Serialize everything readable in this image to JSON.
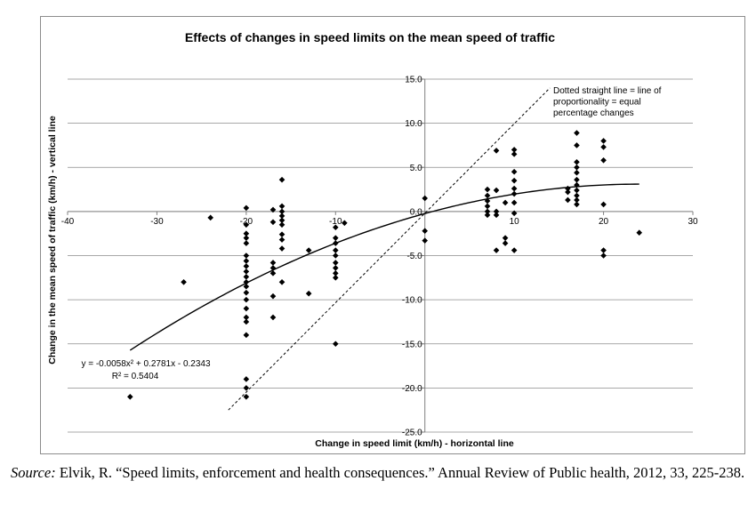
{
  "chart_data": {
    "type": "scatter",
    "title": "Effects of changes in speed limits on the mean speed of traffic",
    "xlabel": "Change in speed limit (km/h) - horizontal line",
    "ylabel": "Change in the mean speed of traffic (km/h) - vertical line",
    "xlim": [
      -40,
      30
    ],
    "ylim": [
      -25,
      15
    ],
    "x_ticks": [
      "-40",
      "-30",
      "-20",
      "-10",
      "0",
      "10",
      "20",
      "30"
    ],
    "y_ticks": [
      "15.0",
      "10.0",
      "5.0",
      "0.0",
      "-5.0",
      "-10.0",
      "-15.0",
      "-20.0",
      "-25.0"
    ],
    "grid": "horizontal",
    "points": [
      [
        -33,
        -21
      ],
      [
        -27,
        -8
      ],
      [
        -24,
        -0.7
      ],
      [
        -20,
        0.4
      ],
      [
        -20,
        -1.5
      ],
      [
        -20,
        -2.5
      ],
      [
        -20,
        -3.0
      ],
      [
        -20,
        -3.6
      ],
      [
        -20,
        -5.0
      ],
      [
        -20,
        -5.6
      ],
      [
        -20,
        -6.2
      ],
      [
        -20,
        -6.8
      ],
      [
        -20,
        -7.4
      ],
      [
        -20,
        -8.0
      ],
      [
        -20,
        -8.5
      ],
      [
        -20,
        -9.2
      ],
      [
        -20,
        -10.0
      ],
      [
        -20,
        -11.0
      ],
      [
        -20,
        -12.0
      ],
      [
        -20,
        -12.5
      ],
      [
        -20,
        -14.0
      ],
      [
        -20,
        -19.0
      ],
      [
        -20,
        -20.0
      ],
      [
        -20,
        -21.0
      ],
      [
        -17,
        0.2
      ],
      [
        -17,
        -1.2
      ],
      [
        -17,
        -5.8
      ],
      [
        -17,
        -6.4
      ],
      [
        -17,
        -7.0
      ],
      [
        -17,
        -9.6
      ],
      [
        -17,
        -12.0
      ],
      [
        -16,
        3.6
      ],
      [
        -16,
        0.6
      ],
      [
        -16,
        0.0
      ],
      [
        -16,
        -0.5
      ],
      [
        -16,
        -1.0
      ],
      [
        -16,
        -1.5
      ],
      [
        -16,
        -2.6
      ],
      [
        -16,
        -3.2
      ],
      [
        -16,
        -4.2
      ],
      [
        -16,
        -8.0
      ],
      [
        -13,
        -4.4
      ],
      [
        -13,
        -9.3
      ],
      [
        -10,
        -1.8
      ],
      [
        -10,
        -3.0
      ],
      [
        -10,
        -3.6
      ],
      [
        -10,
        -4.4
      ],
      [
        -10,
        -5.0
      ],
      [
        -10,
        -5.8
      ],
      [
        -10,
        -6.4
      ],
      [
        -10,
        -7.0
      ],
      [
        -10,
        -7.5
      ],
      [
        -10,
        -15.0
      ],
      [
        -9,
        -1.3
      ],
      [
        0,
        1.5
      ],
      [
        0,
        -2.2
      ],
      [
        0,
        -3.3
      ],
      [
        7,
        2.5
      ],
      [
        7,
        1.8
      ],
      [
        7,
        1.2
      ],
      [
        7,
        0.6
      ],
      [
        7,
        0.0
      ],
      [
        7,
        -0.4
      ],
      [
        8,
        6.9
      ],
      [
        8,
        2.4
      ],
      [
        8,
        0.0
      ],
      [
        8,
        -0.4
      ],
      [
        8,
        -4.4
      ],
      [
        9,
        1.0
      ],
      [
        9,
        -3.0
      ],
      [
        9,
        -3.6
      ],
      [
        10,
        7.0
      ],
      [
        10,
        6.5
      ],
      [
        10,
        4.5
      ],
      [
        10,
        3.5
      ],
      [
        10,
        2.6
      ],
      [
        10,
        2.0
      ],
      [
        10,
        1.0
      ],
      [
        10,
        -0.2
      ],
      [
        10,
        -4.4
      ],
      [
        16,
        2.6
      ],
      [
        16,
        2.2
      ],
      [
        16,
        1.3
      ],
      [
        17,
        8.9
      ],
      [
        17,
        7.5
      ],
      [
        17,
        5.6
      ],
      [
        17,
        5.0
      ],
      [
        17,
        4.4
      ],
      [
        17,
        3.6
      ],
      [
        17,
        3.0
      ],
      [
        17,
        2.4
      ],
      [
        17,
        1.8
      ],
      [
        17,
        1.3
      ],
      [
        17,
        0.8
      ],
      [
        20,
        8.0
      ],
      [
        20,
        7.3
      ],
      [
        20,
        5.8
      ],
      [
        20,
        0.8
      ],
      [
        20,
        -4.4
      ],
      [
        20,
        -5.0
      ],
      [
        24,
        -2.4
      ]
    ],
    "trendline": {
      "a": -0.0058,
      "b": 0.2781,
      "c": -0.2343,
      "x_range": [
        -33,
        24
      ],
      "equation": "y = -0.0058x² + 0.2781x - 0.2343",
      "r_squared": "R² = 0.5404"
    },
    "proportionality_line": {
      "from": [
        -22,
        -22.5
      ],
      "to": [
        14,
        14
      ],
      "annotation": [
        "Dotted straight line = line of",
        "proportionality = equal",
        "percentage changes"
      ]
    },
    "colors": {
      "markers": "#000000",
      "gridlines": "#8c8c8c"
    }
  },
  "source": {
    "label": "Source:",
    "text": " Elvik, R. “Speed limits, enforcement and health consequences.” Annual Review of Public health, 2012, 33, 225-238."
  }
}
